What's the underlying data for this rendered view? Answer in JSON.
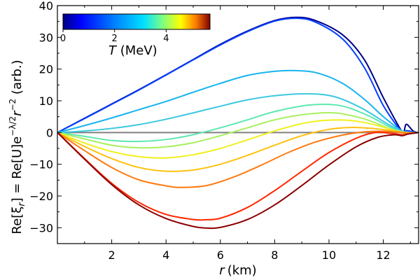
{
  "chart_data": {
    "type": "line",
    "title": "",
    "xlabel_var": "r",
    "xlabel_unit": "(km)",
    "ylabel_main": "Re[ξ",
    "ylabel_rest": "] = Re[U]e",
    "ylabel_exp": "−λ/2",
    "ylabel_r": "r",
    "ylabel_rexp": "−2",
    "ylabel_unit": " (arb.)",
    "xlim": [
      0,
      13.3
    ],
    "ylim": [
      -35,
      40
    ],
    "xticks": [
      2,
      4,
      6,
      8,
      10,
      12
    ],
    "yticks": [
      -30,
      -20,
      -10,
      0,
      10,
      20,
      30,
      40
    ],
    "colorbar": {
      "label_var": "T",
      "label_unit": " (MeV)",
      "range": [
        0,
        5.7
      ],
      "ticks": [
        0,
        2,
        4
      ]
    },
    "zero_line_color": "#808080",
    "series": [
      {
        "name": "T=0.1",
        "color": "#00008b",
        "x": [
          0,
          1,
          2,
          3,
          4,
          5,
          6,
          7,
          8,
          8.8,
          9.5,
          10.5,
          11.3,
          12.0,
          12.6,
          12.75,
          12.85,
          13.1,
          13.3
        ],
        "y": [
          0,
          4.5,
          9,
          13.5,
          18.2,
          23,
          27.8,
          32,
          35.3,
          36.3,
          35.3,
          30.8,
          23,
          11,
          1.5,
          0.2,
          2.6,
          0.5,
          0
        ]
      },
      {
        "name": "T=0.5",
        "color": "#0040ff",
        "x": [
          0,
          1,
          2,
          3,
          4,
          5,
          6,
          7,
          8,
          8.8,
          9.5,
          10.5,
          11.3,
          12.0,
          12.6,
          12.75,
          12.85,
          13.1,
          13.3
        ],
        "y": [
          0,
          4.4,
          8.9,
          13.4,
          18.1,
          22.9,
          27.6,
          31.8,
          35.1,
          36.0,
          34.8,
          29.5,
          20.5,
          8.5,
          1.0,
          0,
          0.6,
          0.2,
          0
        ]
      },
      {
        "name": "T=1.2",
        "color": "#18b4f0",
        "x": [
          0,
          1,
          2,
          3,
          4,
          5,
          6,
          7,
          8,
          8.8,
          9.6,
          10.5,
          11.3,
          12.0,
          12.6,
          12.85,
          13.3
        ],
        "y": [
          0,
          2.2,
          4.6,
          7.2,
          9.8,
          12.7,
          15.5,
          18,
          19.3,
          19.5,
          18.7,
          15.5,
          10.5,
          5.0,
          1.0,
          0.1,
          0
        ]
      },
      {
        "name": "T=1.8",
        "color": "#3cc8e0",
        "x": [
          0,
          1,
          2,
          3,
          4,
          5,
          6,
          7,
          8,
          9.2,
          10.2,
          11.2,
          12.2,
          12.8,
          13.3
        ],
        "y": [
          0,
          0.5,
          1.3,
          2.5,
          4.2,
          6.2,
          8.3,
          10.3,
          11.6,
          12.2,
          11.3,
          7.7,
          2.5,
          0.2,
          0
        ]
      },
      {
        "name": "T=2.4",
        "color": "#5de8b0",
        "x": [
          0,
          1,
          2,
          3,
          4,
          5,
          6,
          7,
          8,
          9.3,
          10.4,
          11.4,
          12.3,
          12.8,
          13.3
        ],
        "y": [
          0,
          -1.2,
          -2.5,
          -2.8,
          -2.2,
          -0.7,
          1.5,
          4.0,
          6.6,
          8.7,
          8.5,
          5.5,
          1.5,
          0.1,
          0
        ]
      },
      {
        "name": "T=3.0",
        "color": "#a8f060",
        "x": [
          0,
          1,
          2,
          3,
          4,
          5,
          6,
          7,
          8,
          9,
          10.2,
          11.3,
          12.3,
          12.8,
          13.3
        ],
        "y": [
          0,
          -2.0,
          -4.0,
          -4.8,
          -4.5,
          -3.2,
          -1.0,
          1.5,
          4.0,
          5.6,
          6.2,
          4.3,
          1.0,
          0,
          0
        ]
      },
      {
        "name": "T=3.6",
        "color": "#f0f020",
        "x": [
          0,
          1,
          2,
          3,
          4,
          5,
          6,
          7,
          8,
          9,
          9.8,
          10.8,
          11.6,
          12.4,
          12.8,
          13.3
        ],
        "y": [
          0,
          -3.3,
          -6.0,
          -7.6,
          -8.0,
          -7.0,
          -5.0,
          -2.3,
          0.5,
          2.8,
          3.8,
          3.8,
          2.6,
          0.7,
          0,
          0
        ]
      },
      {
        "name": "T=4.1",
        "color": "#ffc010",
        "x": [
          0,
          1,
          2,
          3,
          4,
          5,
          6,
          7,
          8,
          9,
          10,
          10.8,
          11.6,
          12.4,
          12.8,
          13.3
        ],
        "y": [
          0,
          -4.4,
          -8.2,
          -11.0,
          -12.2,
          -11.8,
          -10.0,
          -7.2,
          -4.0,
          -1.0,
          1.0,
          1.6,
          1.3,
          0.5,
          0,
          0
        ]
      },
      {
        "name": "T=4.6",
        "color": "#ff7a10",
        "x": [
          0,
          1,
          2,
          3,
          4,
          4.6,
          5.5,
          6.5,
          7.5,
          8.5,
          9.5,
          10.5,
          11.3,
          12.0,
          12.6,
          12.9,
          13.3
        ],
        "y": [
          0,
          -5.7,
          -11.0,
          -14.9,
          -16.8,
          -17.3,
          -16.7,
          -14.0,
          -10.3,
          -6.3,
          -3.0,
          -0.8,
          0.2,
          0.4,
          0,
          -0.2,
          0
        ]
      },
      {
        "name": "T=5.0",
        "color": "#ff2800",
        "x": [
          0,
          1,
          2,
          3,
          4,
          5,
          5.4,
          6,
          7,
          8,
          9,
          10,
          11,
          11.7,
          12.3,
          12.7,
          12.9,
          13.3
        ],
        "y": [
          0,
          -8.2,
          -16.0,
          -22.0,
          -25.8,
          -27.4,
          -27.5,
          -27.0,
          -23.6,
          -18.3,
          -12.2,
          -6.3,
          -1.8,
          0,
          -0.3,
          -0.7,
          -0.4,
          0
        ]
      },
      {
        "name": "T=5.6",
        "color": "#8b0000",
        "x": [
          0,
          1,
          2,
          3,
          4,
          5,
          5.5,
          6,
          7,
          8,
          9,
          10,
          11,
          11.8,
          12.4,
          12.7,
          12.9,
          13.3
        ],
        "y": [
          0,
          -8.4,
          -16.4,
          -22.8,
          -27.1,
          -29.6,
          -30.1,
          -29.9,
          -27.4,
          -22.8,
          -16.7,
          -10.2,
          -4.5,
          -1.5,
          -0.7,
          -1.0,
          -0.5,
          0
        ]
      }
    ]
  }
}
